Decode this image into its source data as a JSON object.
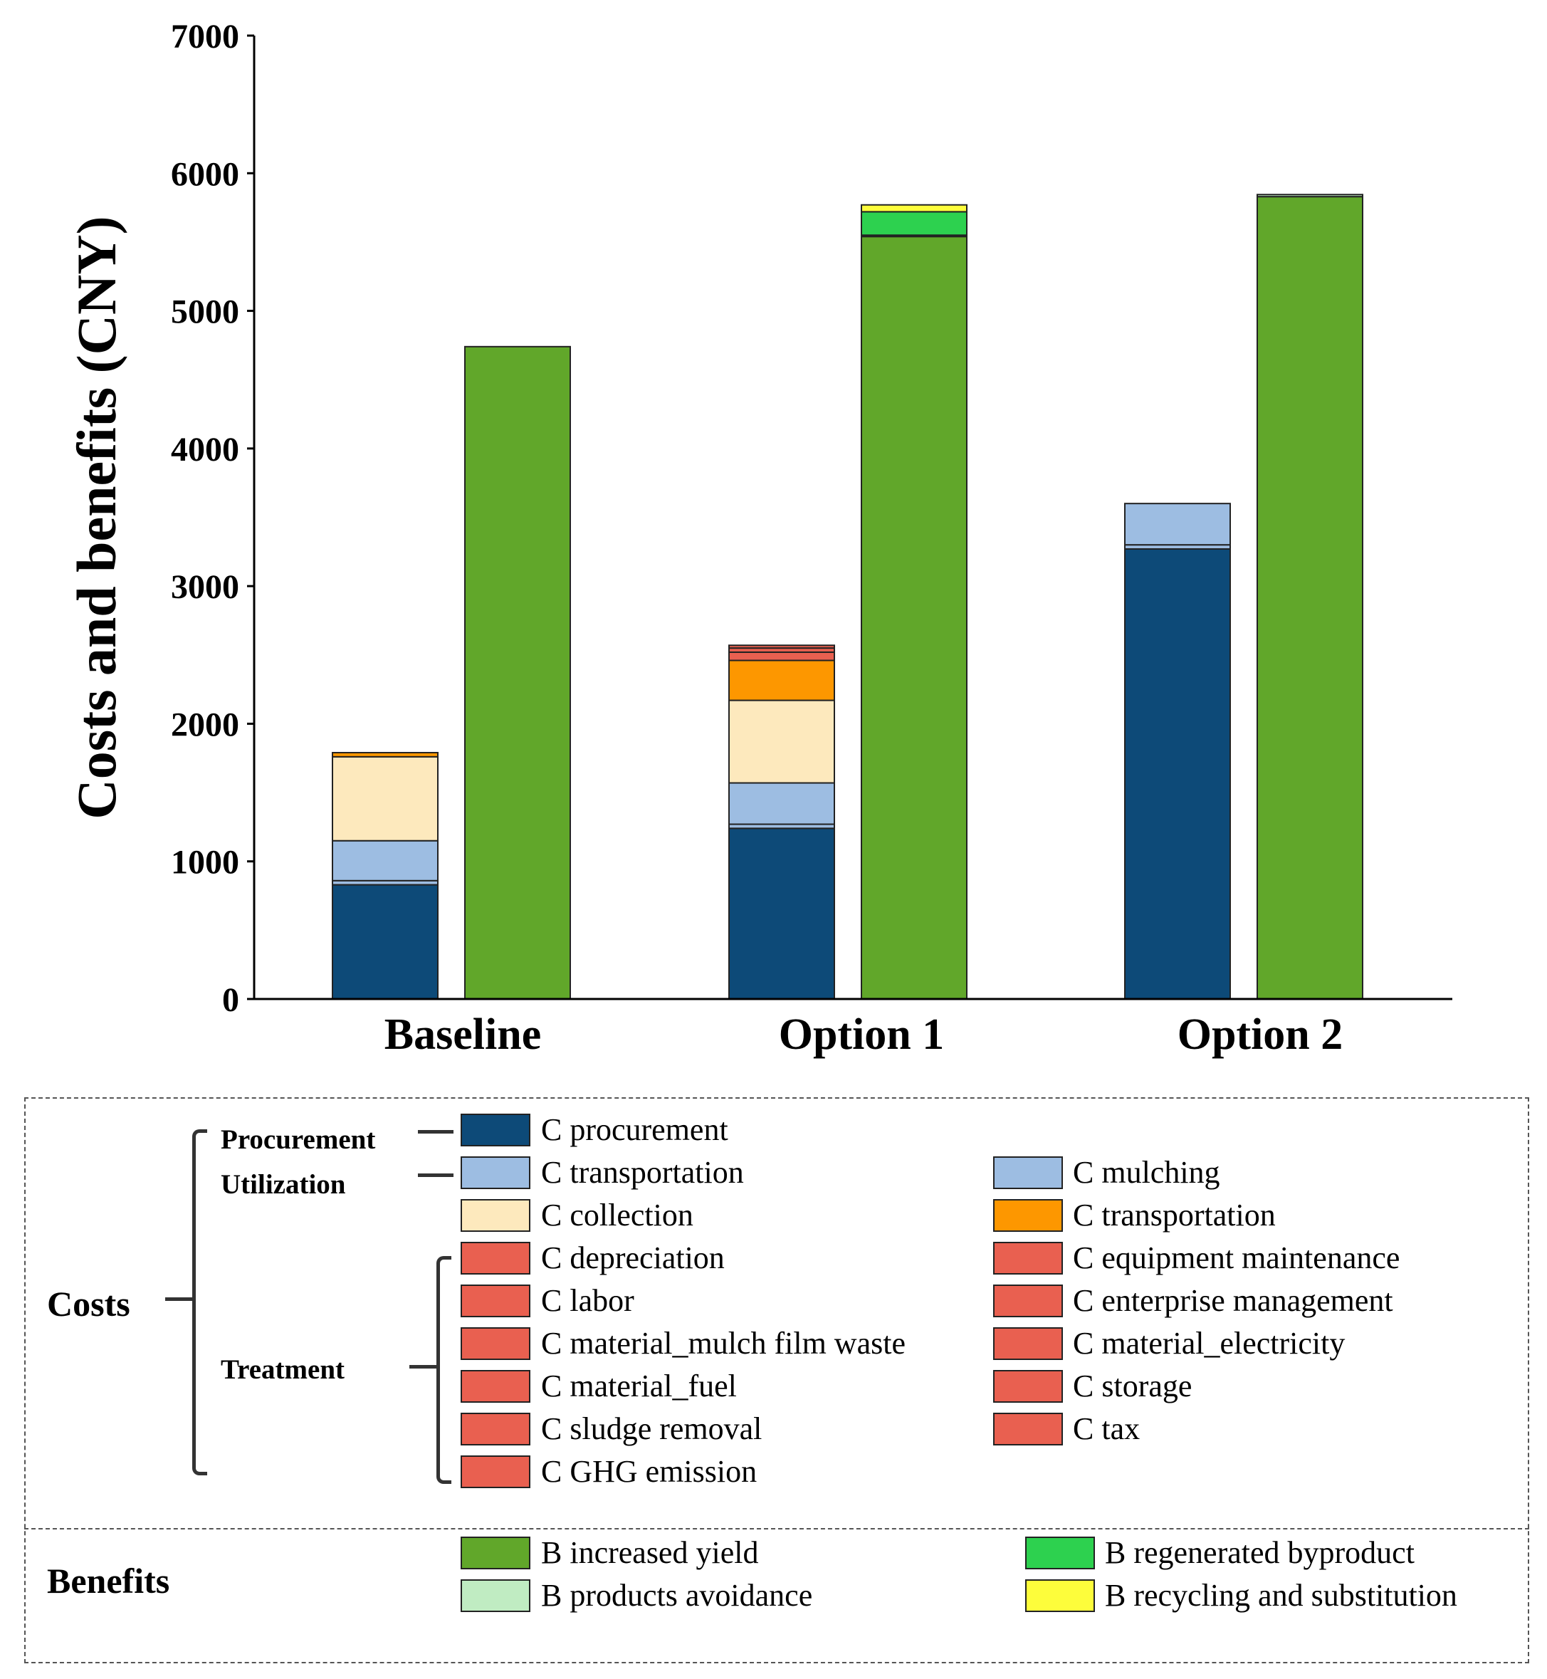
{
  "chart_data": {
    "type": "bar",
    "stacked": true,
    "ylabel": "Costs and benefits (CNY)",
    "ylim": [
      0,
      7000
    ],
    "yticks": [
      0,
      1000,
      2000,
      3000,
      4000,
      5000,
      6000,
      7000
    ],
    "categories": [
      "Baseline",
      "Option 1",
      "Option 2"
    ],
    "bars": [
      {
        "group": "Baseline",
        "kind": "costs",
        "segments": [
          {
            "component": "C procurement",
            "value": 830
          },
          {
            "component": "C transportation",
            "value": 30
          },
          {
            "component": "C mulching",
            "value": 290
          },
          {
            "component": "C collection",
            "value": 610
          },
          {
            "component": "C transportation (collected)",
            "value": 30
          }
        ]
      },
      {
        "group": "Baseline",
        "kind": "benefits",
        "segments": [
          {
            "component": "B increased yield",
            "value": 4740
          }
        ]
      },
      {
        "group": "Option 1",
        "kind": "costs",
        "segments": [
          {
            "component": "C procurement",
            "value": 1240
          },
          {
            "component": "C transportation",
            "value": 30
          },
          {
            "component": "C mulching",
            "value": 300
          },
          {
            "component": "C collection",
            "value": 600
          },
          {
            "component": "C transportation (collected)",
            "value": 290
          },
          {
            "component": "C treatment",
            "value": 60
          },
          {
            "component": "C treatment",
            "value": 30
          },
          {
            "component": "C treatment",
            "value": 20
          }
        ]
      },
      {
        "group": "Option 1",
        "kind": "benefits",
        "segments": [
          {
            "component": "B increased yield",
            "value": 5540
          },
          {
            "component": "B products avoidance",
            "value": 10
          },
          {
            "component": "B regenerated byproduct",
            "value": 170
          },
          {
            "component": "B recycling and substitution",
            "value": 50
          }
        ]
      },
      {
        "group": "Option 2",
        "kind": "costs",
        "segments": [
          {
            "component": "C procurement",
            "value": 3270
          },
          {
            "component": "C transportation",
            "value": 30
          },
          {
            "component": "C mulching",
            "value": 300
          }
        ]
      },
      {
        "group": "Option 2",
        "kind": "benefits",
        "segments": [
          {
            "component": "B increased yield",
            "value": 5830
          },
          {
            "component": "B products avoidance",
            "value": 15
          }
        ]
      }
    ]
  },
  "colors": {
    "procurement": "#0d4a78",
    "utilization_blue": "#9dbde2",
    "collection": "#fde9bd",
    "transport_orange": "#fd9700",
    "treatment_red": "#e96050",
    "increased_yield": "#61a72a",
    "regenerated_byproduct": "#2dd14f",
    "products_avoidance": "#c0ecc2",
    "recycling": "#fdfd3b"
  },
  "legend": {
    "costs_label": "Costs",
    "benefits_label": "Benefits",
    "procurement_label": "Procurement",
    "utilization_label": "Utilization",
    "treatment_label": "Treatment",
    "items": [
      {
        "label": "C procurement",
        "color": "#0d4a78"
      },
      {
        "label": "C transportation",
        "color": "#9dbde2"
      },
      {
        "label": "C mulching",
        "color": "#9dbde2"
      },
      {
        "label": "C collection",
        "color": "#fde9bd"
      },
      {
        "label": "C transportation",
        "color": "#fd9700"
      },
      {
        "label": "C depreciation",
        "color": "#e96050"
      },
      {
        "label": "C equipment maintenance",
        "color": "#e96050"
      },
      {
        "label": "C labor",
        "color": "#e96050"
      },
      {
        "label": "C enterprise management",
        "color": "#e96050"
      },
      {
        "label": "C material_mulch film waste",
        "color": "#e96050"
      },
      {
        "label": "C material_electricity",
        "color": "#e96050"
      },
      {
        "label": "C material_fuel",
        "color": "#e96050"
      },
      {
        "label": "C storage",
        "color": "#e96050"
      },
      {
        "label": "C sludge removal",
        "color": "#e96050"
      },
      {
        "label": "C tax",
        "color": "#e96050"
      },
      {
        "label": "C GHG emission",
        "color": "#e96050"
      },
      {
        "label": "B increased yield",
        "color": "#61a72a"
      },
      {
        "label": "B regenerated byproduct",
        "color": "#2dd14f"
      },
      {
        "label": "B products avoidance",
        "color": "#c0ecc2"
      },
      {
        "label": "B recycling and substitution",
        "color": "#fdfd3b"
      }
    ]
  }
}
